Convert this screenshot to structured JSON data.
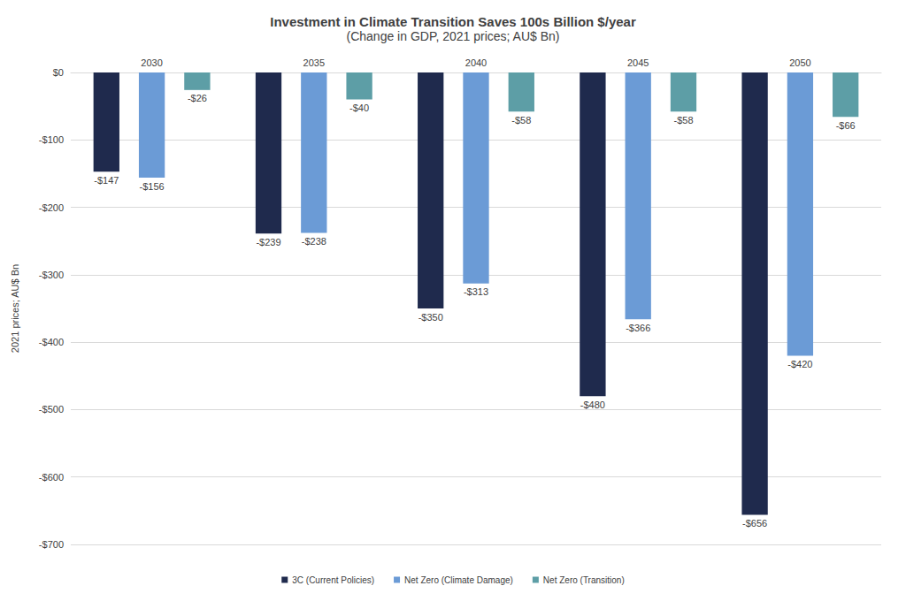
{
  "chart_data": {
    "type": "bar",
    "title": "Investment in Climate Transition Saves 100s Billion $/year",
    "subtitle": "(Change in GDP, 2021 prices; AU$ Bn)",
    "ylabel": "2021 prices; AU$ Bn",
    "categories": [
      "2030",
      "2035",
      "2040",
      "2045",
      "2050"
    ],
    "series": [
      {
        "name": "3C (Current Policies)",
        "color": "#1f2a4d",
        "values": [
          -147,
          -239,
          -350,
          -480,
          -656
        ],
        "value_labels": [
          "-$147",
          "-$239",
          "-$350",
          "-$480",
          "-$656"
        ]
      },
      {
        "name": "Net Zero (Climate Damage)",
        "color": "#6b9bd6",
        "values": [
          -156,
          -238,
          -313,
          -366,
          -420
        ],
        "value_labels": [
          "-$156",
          "-$238",
          "-$313",
          "-$366",
          "-$420"
        ]
      },
      {
        "name": "Net Zero (Transition)",
        "color": "#5d9ea6",
        "values": [
          -26,
          -40,
          -58,
          -58,
          -66
        ],
        "value_labels": [
          "-$26",
          "-$40",
          "-$58",
          "-$58",
          "-$66"
        ]
      }
    ],
    "ylim": [
      -700,
      0
    ],
    "yticks": [
      {
        "value": 0,
        "label": "$0"
      },
      {
        "value": -100,
        "label": "-$100"
      },
      {
        "value": -200,
        "label": "-$200"
      },
      {
        "value": -300,
        "label": "-$300"
      },
      {
        "value": -400,
        "label": "-$400"
      },
      {
        "value": -500,
        "label": "-$500"
      },
      {
        "value": -600,
        "label": "-$600"
      },
      {
        "value": -700,
        "label": "-$700"
      }
    ],
    "grid": true,
    "legend": "bottom",
    "data_labels": true
  }
}
